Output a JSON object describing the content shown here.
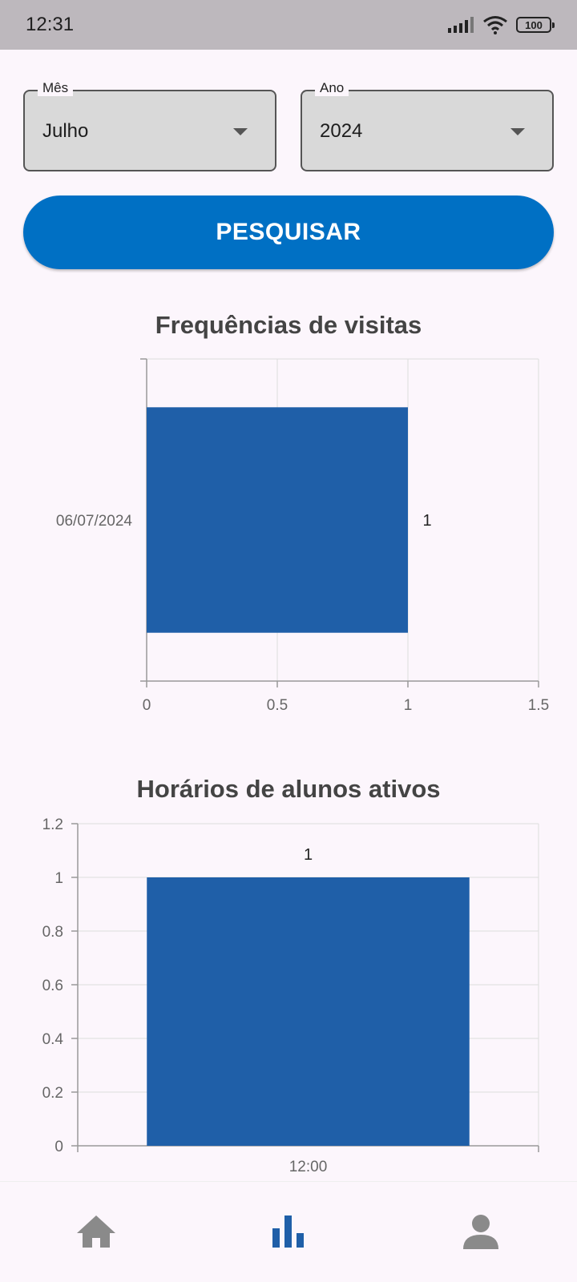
{
  "status_bar": {
    "time": "12:31",
    "battery": "100",
    "icons": [
      "signal-icon",
      "wifi-icon",
      "battery-icon"
    ]
  },
  "filters": {
    "month_label": "Mês",
    "month_value": "Julho",
    "year_label": "Ano",
    "year_value": "2024"
  },
  "search_button": {
    "label": "PESQUISAR"
  },
  "colors": {
    "bar": "#1f5fa8",
    "accent": "#0070c4",
    "nav_active": "#1f5fa8",
    "nav_inactive": "#8a8a8a"
  },
  "chart_data": [
    {
      "type": "bar",
      "orientation": "horizontal",
      "title": "Frequências de visitas",
      "categories": [
        "06/07/2024"
      ],
      "values": [
        1
      ],
      "data_labels": [
        "1"
      ],
      "xlim": [
        0,
        1.5
      ],
      "x_ticks": [
        "0",
        "0.5",
        "1",
        "1.5"
      ],
      "grid": true
    },
    {
      "type": "bar",
      "orientation": "vertical",
      "title": "Horários de alunos ativos",
      "categories": [
        "12:00"
      ],
      "values": [
        1
      ],
      "data_labels": [
        "1"
      ],
      "ylim": [
        0,
        1.2
      ],
      "y_ticks": [
        "0",
        "0.2",
        "0.4",
        "0.6",
        "0.8",
        "1",
        "1.2"
      ],
      "grid": true
    }
  ],
  "bottom_nav": {
    "items": [
      {
        "icon": "home-icon",
        "active": false
      },
      {
        "icon": "bar-chart-icon",
        "active": true
      },
      {
        "icon": "person-icon",
        "active": false
      }
    ]
  }
}
